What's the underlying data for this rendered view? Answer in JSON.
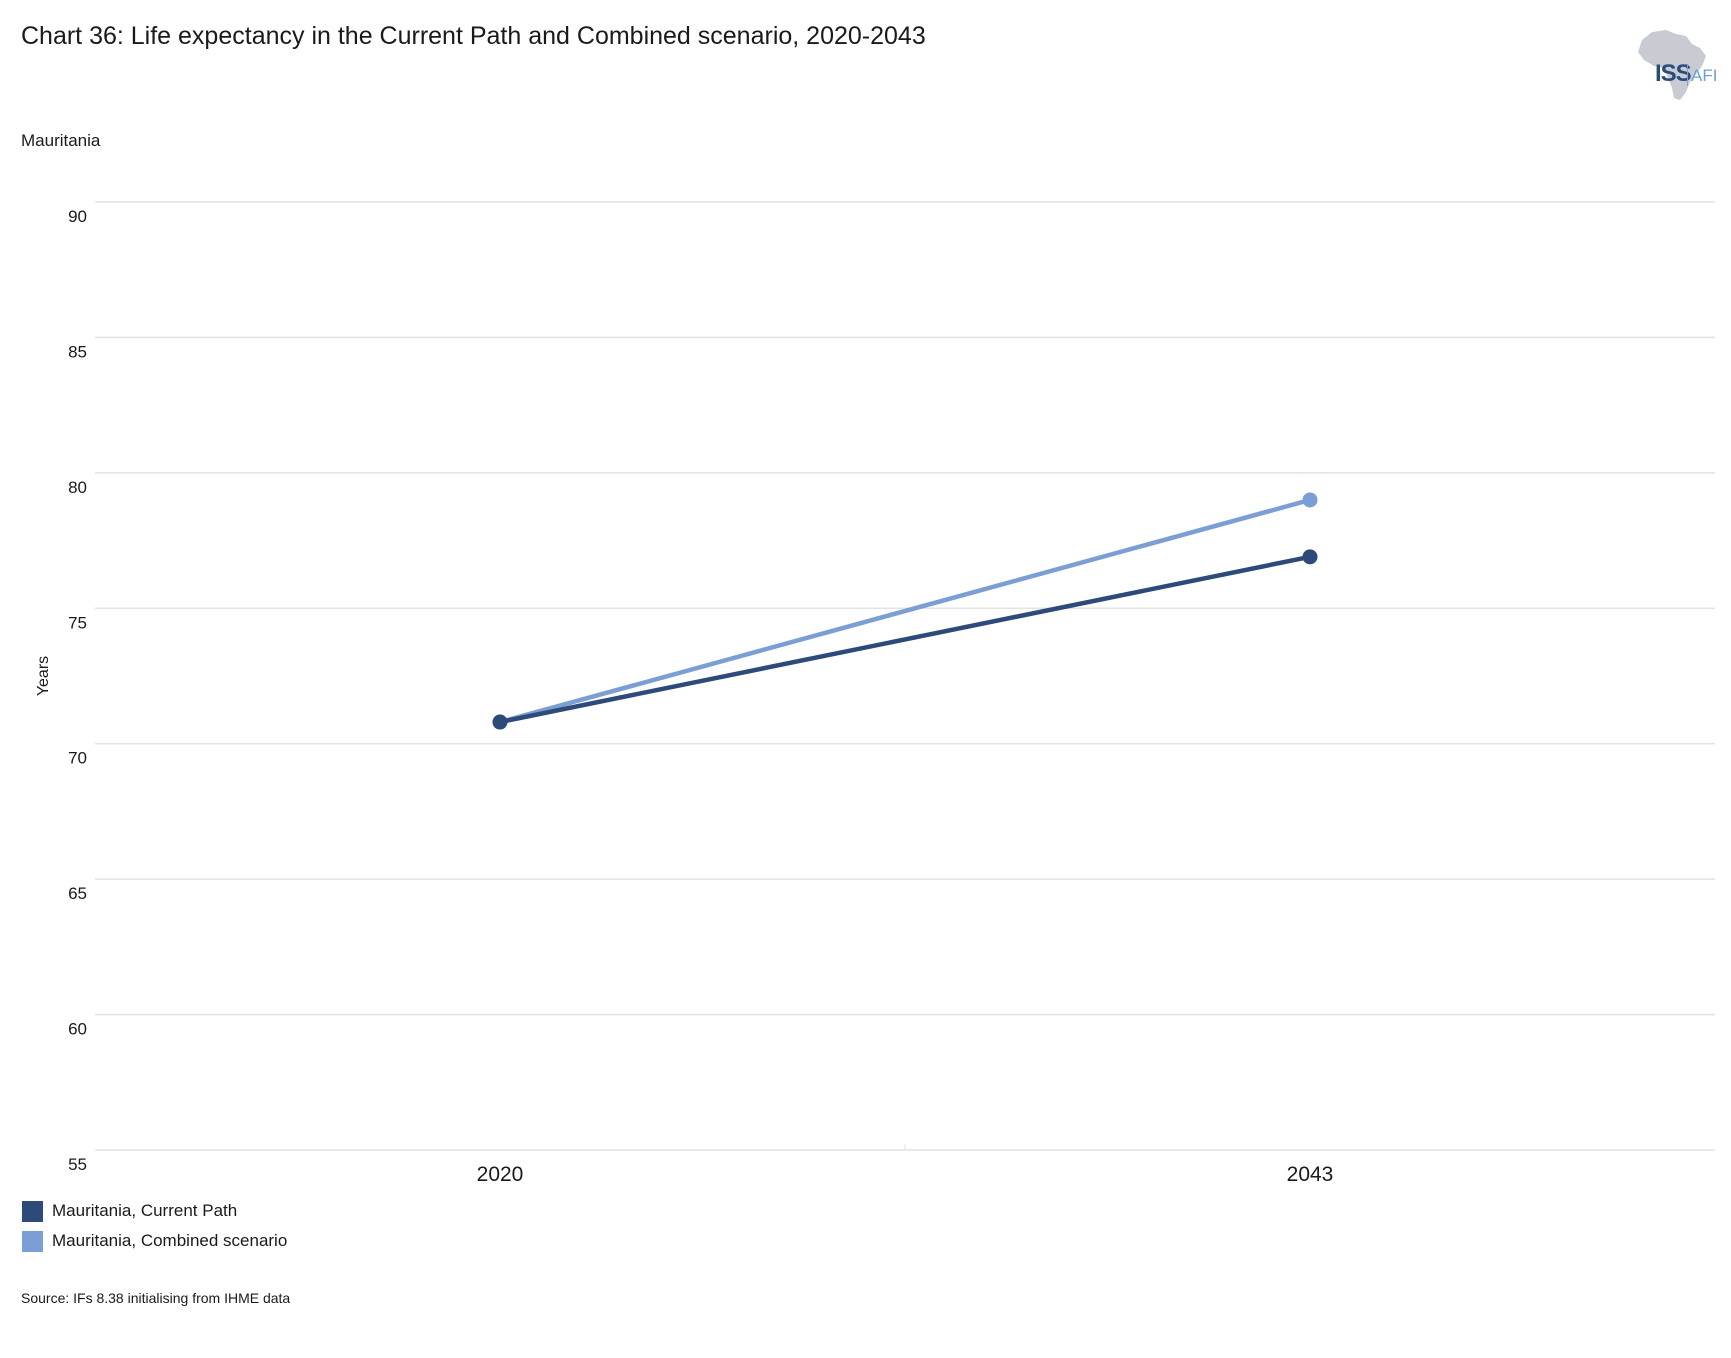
{
  "title": "Chart 36: Life expectancy in the Current Path and Combined scenario, 2020-2043",
  "subtitle": "Mauritania",
  "source": "Source: IFs 8.38 initialising from IHME data",
  "logo": {
    "main": "ISS",
    "sub": "AFI",
    "icon": "africa-map-icon"
  },
  "colors": {
    "current_path": "#2e4a78",
    "combined": "#7b9fd4",
    "grid": "#e3e3e3"
  },
  "chart_data": {
    "type": "line",
    "x": [
      "2020",
      "2043"
    ],
    "ylabel": "Years",
    "xlabel": "",
    "ylim": [
      55,
      90
    ],
    "yticks": [
      90,
      85,
      80,
      75,
      70,
      65,
      60,
      55
    ],
    "grid": true,
    "legend_position": "bottom-left",
    "series": [
      {
        "name": "Mauritania, Current Path",
        "values": [
          70.8,
          76.9
        ],
        "color": "#2e4a78"
      },
      {
        "name": "Mauritania, Combined scenario",
        "values": [
          70.8,
          79.0
        ],
        "color": "#7b9fd4"
      }
    ]
  }
}
